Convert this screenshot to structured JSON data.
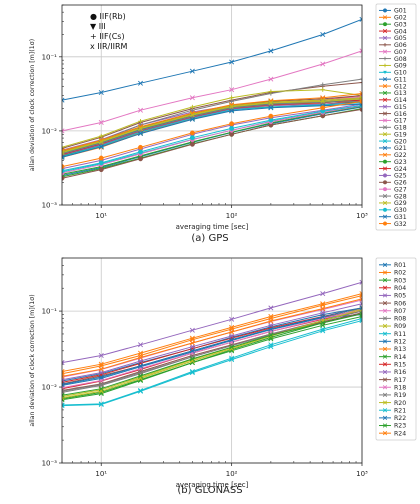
{
  "chart_data": [
    {
      "type": "line",
      "caption": "(a)   GPS",
      "xlabel": "averaging time [sec]",
      "ylabel": "allan deviation of clock correction [m](1σ)",
      "xscale": "log",
      "yscale": "log",
      "xlim": [
        5,
        1000
      ],
      "ylim": [
        0.001,
        0.5
      ],
      "x_ticks": [
        {
          "v": 10,
          "label": "10¹"
        },
        {
          "v": 100,
          "label": "10²"
        },
        {
          "v": 1000,
          "label": "10³"
        }
      ],
      "y_ticks": [
        {
          "v": 0.001,
          "label": "10⁻³"
        },
        {
          "v": 0.01,
          "label": "10⁻²"
        },
        {
          "v": 0.1,
          "label": "10⁻¹"
        }
      ],
      "grid": true,
      "legend_position": "right-outside",
      "annotations": [
        "● IIF(Rb)",
        "▼ III",
        "+ IIF(Cs)",
        "x IIR/IIRM"
      ],
      "x": [
        5,
        10,
        20,
        50,
        100,
        200,
        500,
        1000
      ],
      "series": [
        {
          "name": "G01",
          "color": "#1f77b4",
          "marker": "o",
          "values": [
            0.0025,
            0.0032,
            0.0045,
            0.007,
            0.0095,
            0.0125,
            0.017,
            0.021
          ]
        },
        {
          "name": "G02",
          "color": "#ff7f0e",
          "marker": "x",
          "values": [
            0.0045,
            0.0062,
            0.0095,
            0.015,
            0.02,
            0.023,
            0.025,
            0.027
          ]
        },
        {
          "name": "G03",
          "color": "#2ca02c",
          "marker": "o",
          "values": [
            0.0024,
            0.0031,
            0.0043,
            0.0067,
            0.009,
            0.012,
            0.016,
            0.02
          ]
        },
        {
          "name": "G04",
          "color": "#d62728",
          "marker": "x",
          "values": [
            0.0048,
            0.0066,
            0.01,
            0.0155,
            0.02,
            0.022,
            0.023,
            0.025
          ]
        },
        {
          "name": "G05",
          "color": "#9467bd",
          "marker": "x",
          "values": [
            0.0055,
            0.0076,
            0.012,
            0.018,
            0.022,
            0.024,
            0.025,
            0.028
          ]
        },
        {
          "name": "G06",
          "color": "#8c564b",
          "marker": "+",
          "values": [
            0.0058,
            0.0082,
            0.013,
            0.02,
            0.026,
            0.033,
            0.04,
            0.045
          ]
        },
        {
          "name": "G07",
          "color": "#e377c2",
          "marker": "x",
          "values": [
            0.01,
            0.013,
            0.019,
            0.028,
            0.036,
            0.05,
            0.08,
            0.12
          ]
        },
        {
          "name": "G08",
          "color": "#7f7f7f",
          "marker": "+",
          "values": [
            0.0052,
            0.0075,
            0.012,
            0.019,
            0.025,
            0.032,
            0.042,
            0.05
          ]
        },
        {
          "name": "G09",
          "color": "#bcbd22",
          "marker": "+",
          "values": [
            0.006,
            0.0085,
            0.0135,
            0.021,
            0.028,
            0.034,
            0.036,
            0.03
          ]
        },
        {
          "name": "G10",
          "color": "#17becf",
          "marker": "v",
          "values": [
            0.0028,
            0.0036,
            0.005,
            0.0077,
            0.0102,
            0.0135,
            0.018,
            0.022
          ]
        },
        {
          "name": "G11",
          "color": "#1f77b4",
          "marker": "x",
          "values": [
            0.026,
            0.033,
            0.044,
            0.064,
            0.085,
            0.12,
            0.2,
            0.32
          ]
        },
        {
          "name": "G12",
          "color": "#ff7f0e",
          "marker": "x",
          "values": [
            0.0044,
            0.006,
            0.0093,
            0.0145,
            0.019,
            0.022,
            0.024,
            0.026
          ]
        },
        {
          "name": "G13",
          "color": "#2ca02c",
          "marker": "x",
          "values": [
            0.0046,
            0.0064,
            0.0098,
            0.0152,
            0.0195,
            0.021,
            0.022,
            0.025
          ]
        },
        {
          "name": "G14",
          "color": "#d62728",
          "marker": "x",
          "values": [
            0.005,
            0.007,
            0.0105,
            0.016,
            0.021,
            0.024,
            0.026,
            0.03
          ]
        },
        {
          "name": "G15",
          "color": "#9467bd",
          "marker": "x",
          "values": [
            0.0047,
            0.0065,
            0.0099,
            0.0151,
            0.0197,
            0.022,
            0.023,
            0.024
          ]
        },
        {
          "name": "G16",
          "color": "#8c564b",
          "marker": "x",
          "values": [
            0.0053,
            0.0074,
            0.0112,
            0.017,
            0.022,
            0.025,
            0.027,
            0.03
          ]
        },
        {
          "name": "G17",
          "color": "#e377c2",
          "marker": "x",
          "values": [
            0.0051,
            0.0071,
            0.0108,
            0.0166,
            0.0215,
            0.024,
            0.026,
            0.029
          ]
        },
        {
          "name": "G18",
          "color": "#7f7f7f",
          "marker": "x",
          "values": [
            0.0049,
            0.0068,
            0.0103,
            0.0158,
            0.0205,
            0.023,
            0.025,
            0.027
          ]
        },
        {
          "name": "G19",
          "color": "#bcbd22",
          "marker": "x",
          "values": [
            0.0052,
            0.0073,
            0.011,
            0.0168,
            0.0218,
            0.0245,
            0.026,
            0.028
          ]
        },
        {
          "name": "G20",
          "color": "#17becf",
          "marker": "x",
          "values": [
            0.0045,
            0.0063,
            0.0096,
            0.0148,
            0.0192,
            0.021,
            0.0225,
            0.024
          ]
        },
        {
          "name": "G21",
          "color": "#1f77b4",
          "marker": "x",
          "values": [
            0.005,
            0.0069,
            0.0104,
            0.0159,
            0.0207,
            0.0232,
            0.0245,
            0.026
          ]
        },
        {
          "name": "G22",
          "color": "#ff7f0e",
          "marker": "x",
          "values": [
            0.0054,
            0.0075,
            0.0114,
            0.0174,
            0.0226,
            0.0255,
            0.028,
            0.032
          ]
        },
        {
          "name": "G23",
          "color": "#2ca02c",
          "marker": "o",
          "values": [
            0.0026,
            0.0033,
            0.0046,
            0.0071,
            0.0096,
            0.0128,
            0.0175,
            0.0215
          ]
        },
        {
          "name": "G24",
          "color": "#d62728",
          "marker": "x",
          "values": [
            0.0048,
            0.0067,
            0.0101,
            0.0155,
            0.0201,
            0.0226,
            0.024,
            0.026
          ]
        },
        {
          "name": "G25",
          "color": "#9467bd",
          "marker": "o",
          "values": [
            0.0031,
            0.004,
            0.0057,
            0.009,
            0.012,
            0.015,
            0.019,
            0.023
          ]
        },
        {
          "name": "G26",
          "color": "#8c564b",
          "marker": "o",
          "values": [
            0.0023,
            0.003,
            0.0042,
            0.0066,
            0.009,
            0.012,
            0.016,
            0.0195
          ]
        },
        {
          "name": "G27",
          "color": "#e377c2",
          "marker": "o",
          "values": [
            0.0027,
            0.0035,
            0.0049,
            0.0076,
            0.0102,
            0.0133,
            0.0178,
            0.0218
          ]
        },
        {
          "name": "G28",
          "color": "#7f7f7f",
          "marker": "x",
          "values": [
            0.0049,
            0.0068,
            0.0102,
            0.0157,
            0.0204,
            0.0229,
            0.0243,
            0.025
          ]
        },
        {
          "name": "G29",
          "color": "#bcbd22",
          "marker": "x",
          "values": [
            0.0051,
            0.0071,
            0.0107,
            0.0164,
            0.0212,
            0.0238,
            0.025,
            0.027
          ]
        },
        {
          "name": "G30",
          "color": "#17becf",
          "marker": "o",
          "values": [
            0.0029,
            0.0037,
            0.0052,
            0.0081,
            0.0108,
            0.014,
            0.0185,
            0.022
          ]
        },
        {
          "name": "G31",
          "color": "#1f77b4",
          "marker": "x",
          "values": [
            0.0044,
            0.0061,
            0.0092,
            0.0143,
            0.0186,
            0.0205,
            0.0218,
            0.023
          ]
        },
        {
          "name": "G32",
          "color": "#ff7f0e",
          "marker": "o",
          "values": [
            0.0033,
            0.0043,
            0.006,
            0.0094,
            0.0125,
            0.0158,
            0.0205,
            0.025
          ]
        }
      ]
    },
    {
      "type": "line",
      "caption": "(b)   GLONASS",
      "xlabel": "averaging time [sec]",
      "ylabel": "allan deviation of clock correction [m](1σ)",
      "xscale": "log",
      "yscale": "log",
      "xlim": [
        5,
        1000
      ],
      "ylim": [
        0.001,
        0.5
      ],
      "x_ticks": [
        {
          "v": 10,
          "label": "10¹"
        },
        {
          "v": 100,
          "label": "10²"
        },
        {
          "v": 1000,
          "label": "10³"
        }
      ],
      "y_ticks": [
        {
          "v": 0.001,
          "label": "10⁻³"
        },
        {
          "v": 0.01,
          "label": "10⁻²"
        },
        {
          "v": 0.1,
          "label": "10⁻¹"
        }
      ],
      "grid": true,
      "legend_position": "right-outside",
      "x": [
        5,
        10,
        20,
        50,
        100,
        200,
        500,
        1000
      ],
      "series": [
        {
          "name": "R01",
          "color": "#1f77b4",
          "marker": "x",
          "values": [
            0.012,
            0.015,
            0.021,
            0.032,
            0.045,
            0.062,
            0.09,
            0.11
          ]
        },
        {
          "name": "R02",
          "color": "#ff7f0e",
          "marker": "x",
          "values": [
            0.015,
            0.019,
            0.026,
            0.042,
            0.058,
            0.08,
            0.12,
            0.16
          ]
        },
        {
          "name": "R03",
          "color": "#2ca02c",
          "marker": "x",
          "values": [
            0.007,
            0.0085,
            0.0125,
            0.021,
            0.031,
            0.045,
            0.07,
            0.095
          ]
        },
        {
          "name": "R04",
          "color": "#d62728",
          "marker": "x",
          "values": [
            0.0095,
            0.012,
            0.017,
            0.028,
            0.039,
            0.054,
            0.078,
            0.1
          ]
        },
        {
          "name": "R05",
          "color": "#9467bd",
          "marker": "x",
          "values": [
            0.021,
            0.026,
            0.036,
            0.056,
            0.078,
            0.11,
            0.17,
            0.24
          ]
        },
        {
          "name": "R06",
          "color": "#8c564b",
          "marker": "x",
          "values": [
            0.011,
            0.014,
            0.019,
            0.03,
            0.042,
            0.058,
            0.082,
            0.105
          ]
        },
        {
          "name": "R07",
          "color": "#e377c2",
          "marker": "x",
          "values": [
            0.0135,
            0.017,
            0.024,
            0.038,
            0.053,
            0.073,
            0.105,
            0.14
          ]
        },
        {
          "name": "R08",
          "color": "#7f7f7f",
          "marker": "x",
          "values": [
            0.0085,
            0.0105,
            0.015,
            0.025,
            0.035,
            0.049,
            0.072,
            0.095
          ]
        },
        {
          "name": "R09",
          "color": "#bcbd22",
          "marker": "x",
          "values": [
            0.0075,
            0.0092,
            0.0135,
            0.023,
            0.033,
            0.048,
            0.075,
            0.11
          ]
        },
        {
          "name": "R11",
          "color": "#17becf",
          "marker": "x",
          "values": [
            0.0058,
            0.006,
            0.009,
            0.016,
            0.024,
            0.036,
            0.058,
            0.08
          ]
        },
        {
          "name": "R12",
          "color": "#1f77b4",
          "marker": "x",
          "values": [
            0.0105,
            0.013,
            0.0185,
            0.029,
            0.041,
            0.057,
            0.082,
            0.09
          ]
        },
        {
          "name": "R13",
          "color": "#ff7f0e",
          "marker": "x",
          "values": [
            0.016,
            0.02,
            0.028,
            0.044,
            0.061,
            0.085,
            0.125,
            0.17
          ]
        },
        {
          "name": "R14",
          "color": "#2ca02c",
          "marker": "x",
          "values": [
            0.0068,
            0.0082,
            0.0122,
            0.021,
            0.03,
            0.043,
            0.065,
            0.085
          ]
        },
        {
          "name": "R15",
          "color": "#d62728",
          "marker": "x",
          "values": [
            0.0115,
            0.0145,
            0.0205,
            0.032,
            0.044,
            0.06,
            0.085,
            0.11
          ]
        },
        {
          "name": "R16",
          "color": "#9467bd",
          "marker": "x",
          "values": [
            0.0125,
            0.0155,
            0.022,
            0.034,
            0.047,
            0.065,
            0.095,
            0.125
          ]
        },
        {
          "name": "R17",
          "color": "#8c564b",
          "marker": "x",
          "values": [
            0.009,
            0.011,
            0.016,
            0.026,
            0.036,
            0.05,
            0.072,
            0.095
          ]
        },
        {
          "name": "R18",
          "color": "#e377c2",
          "marker": "x",
          "values": [
            0.0098,
            0.0122,
            0.0175,
            0.028,
            0.039,
            0.054,
            0.08,
            0.105
          ]
        },
        {
          "name": "R19",
          "color": "#7f7f7f",
          "marker": "x",
          "values": [
            0.0088,
            0.0108,
            0.0155,
            0.025,
            0.035,
            0.05,
            0.075,
            0.1
          ]
        },
        {
          "name": "R20",
          "color": "#bcbd22",
          "marker": "x",
          "values": [
            0.0072,
            0.0088,
            0.013,
            0.022,
            0.032,
            0.047,
            0.075,
            0.105
          ]
        },
        {
          "name": "R21",
          "color": "#17becf",
          "marker": "x",
          "values": [
            0.0057,
            0.0059,
            0.0088,
            0.0155,
            0.023,
            0.034,
            0.055,
            0.075
          ]
        },
        {
          "name": "R22",
          "color": "#1f77b4",
          "marker": "x",
          "values": [
            0.0108,
            0.0135,
            0.019,
            0.03,
            0.042,
            0.058,
            0.084,
            0.11
          ]
        },
        {
          "name": "R23",
          "color": "#2ca02c",
          "marker": "x",
          "values": [
            0.0078,
            0.0095,
            0.014,
            0.0235,
            0.0335,
            0.048,
            0.07,
            0.092
          ]
        },
        {
          "name": "R24",
          "color": "#ff7f0e",
          "marker": "x",
          "values": [
            0.0138,
            0.0172,
            0.0245,
            0.038,
            0.053,
            0.074,
            0.108,
            0.145
          ]
        }
      ]
    }
  ]
}
